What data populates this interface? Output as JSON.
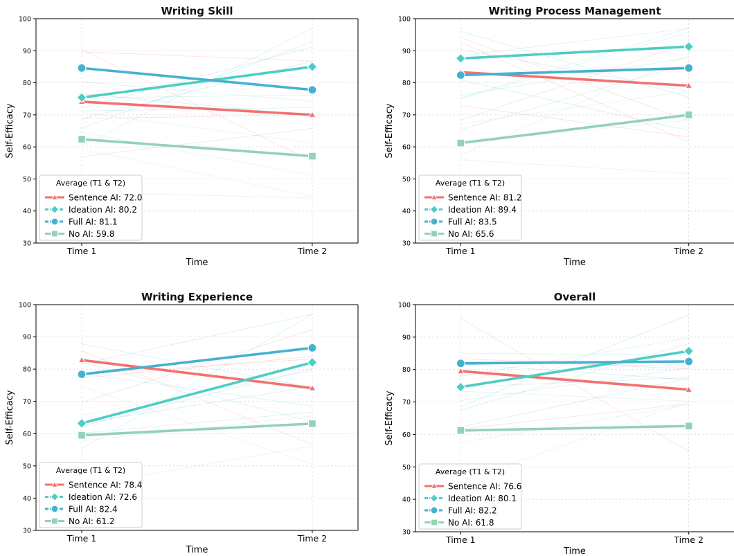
{
  "colors": {
    "sentence": "#f2716f",
    "ideation": "#4ecdc4",
    "full": "#45b1d1",
    "none": "#94d2b8"
  },
  "chart_data": [
    {
      "type": "line",
      "title": "Writing Skill",
      "xlabel": "Time",
      "ylabel": "Self-Efficacy",
      "categories": [
        "Time 1",
        "Time 2"
      ],
      "ylim": [
        30,
        100
      ],
      "yticks": [
        30,
        40,
        50,
        60,
        70,
        80,
        90,
        100
      ],
      "grid": true,
      "legend": {
        "title": "Average (T1 & T2)",
        "position": "lower-left",
        "entries": [
          "Sentence AI: 72.0",
          "Ideation AI: 80.2",
          "Full AI: 81.1",
          "No AI: 59.8"
        ]
      },
      "series": [
        {
          "key": "sentence",
          "marker": "triangle",
          "values": [
            74.1,
            70.0
          ]
        },
        {
          "key": "ideation",
          "marker": "diamond",
          "values": [
            75.4,
            85.0
          ]
        },
        {
          "key": "full",
          "marker": "circle",
          "values": [
            84.6,
            77.8
          ]
        },
        {
          "key": "none",
          "marker": "square",
          "values": [
            62.4,
            57.1
          ]
        }
      ]
    },
    {
      "type": "line",
      "title": "Writing Process Management",
      "xlabel": "Time",
      "ylabel": "Self-Efficacy",
      "categories": [
        "Time 1",
        "Time 2"
      ],
      "ylim": [
        30,
        100
      ],
      "yticks": [
        30,
        40,
        50,
        60,
        70,
        80,
        90,
        100
      ],
      "grid": true,
      "legend": {
        "title": "Average (T1 & T2)",
        "position": "lower-left",
        "entries": [
          "Sentence AI: 81.2",
          "Ideation AI: 89.4",
          "Full AI: 83.5",
          "No AI: 65.6"
        ]
      },
      "series": [
        {
          "key": "sentence",
          "marker": "triangle",
          "values": [
            83.3,
            79.1
          ]
        },
        {
          "key": "ideation",
          "marker": "diamond",
          "values": [
            87.6,
            91.3
          ]
        },
        {
          "key": "full",
          "marker": "circle",
          "values": [
            82.4,
            84.6
          ]
        },
        {
          "key": "none",
          "marker": "square",
          "values": [
            61.2,
            70.0
          ]
        }
      ]
    },
    {
      "type": "line",
      "title": "Writing Experience",
      "xlabel": "Time",
      "ylabel": "Self-Efficacy",
      "categories": [
        "Time 1",
        "Time 2"
      ],
      "ylim": [
        30,
        100
      ],
      "yticks": [
        30,
        40,
        50,
        60,
        70,
        80,
        90,
        100
      ],
      "grid": true,
      "legend": {
        "title": "Average (T1 & T2)",
        "position": "lower-left",
        "entries": [
          "Sentence AI: 78.4",
          "Ideation AI: 72.6",
          "Full AI: 82.4",
          "No AI: 61.2"
        ]
      },
      "series": [
        {
          "key": "sentence",
          "marker": "triangle",
          "values": [
            82.8,
            74.1
          ]
        },
        {
          "key": "ideation",
          "marker": "diamond",
          "values": [
            63.2,
            82.1
          ]
        },
        {
          "key": "full",
          "marker": "circle",
          "values": [
            78.4,
            86.6
          ]
        },
        {
          "key": "none",
          "marker": "square",
          "values": [
            59.5,
            63.1
          ]
        }
      ]
    },
    {
      "type": "line",
      "title": "Overall",
      "xlabel": "Time",
      "ylabel": "Self-Efficacy",
      "categories": [
        "Time 1",
        "Time 2"
      ],
      "ylim": [
        30,
        100
      ],
      "yticks": [
        30,
        40,
        50,
        60,
        70,
        80,
        90,
        100
      ],
      "grid": true,
      "legend": {
        "title": "Average (T1 & T2)",
        "position": "lower-left",
        "entries": [
          "Sentence AI: 76.6",
          "Ideation AI: 80.1",
          "Full AI: 82.2",
          "No AI: 61.8"
        ]
      },
      "series": [
        {
          "key": "sentence",
          "marker": "triangle",
          "values": [
            79.5,
            73.8
          ]
        },
        {
          "key": "ideation",
          "marker": "diamond",
          "values": [
            74.6,
            85.7
          ]
        },
        {
          "key": "full",
          "marker": "circle",
          "values": [
            81.9,
            82.5
          ]
        },
        {
          "key": "none",
          "marker": "square",
          "values": [
            61.2,
            62.6
          ]
        }
      ]
    }
  ]
}
